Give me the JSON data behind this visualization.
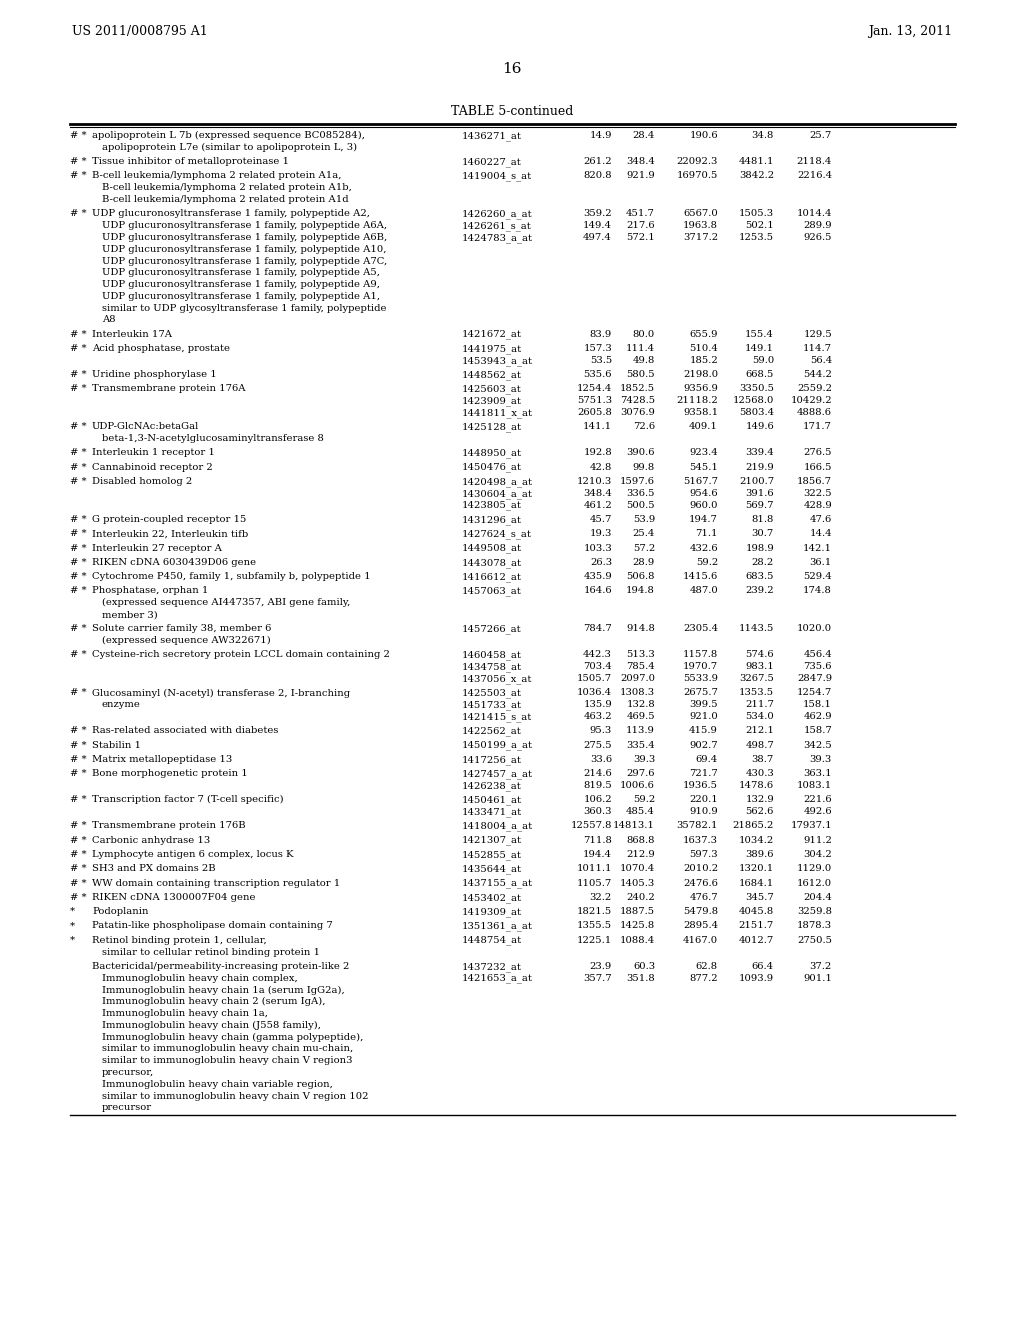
{
  "header_left": "US 2011/0008795 A1",
  "header_right": "Jan. 13, 2011",
  "page_number": "16",
  "table_title": "TABLE 5-continued",
  "background_color": "#ffffff",
  "text_color": "#000000",
  "font_size": 7.2,
  "rows": [
    {
      "markers": "# *",
      "gene": "apolipoprotein L 7b (expressed sequence BC085284),\napolipoprotein L7e (similar to apolipoprotein L, 3)",
      "probe": "1436271_at",
      "v1": "14.9",
      "v2": "28.4",
      "v3": "190.6",
      "v4": "34.8",
      "v5": "25.7"
    },
    {
      "markers": "# *",
      "gene": "Tissue inhibitor of metalloproteinase 1",
      "probe": "1460227_at",
      "v1": "261.2",
      "v2": "348.4",
      "v3": "22092.3",
      "v4": "4481.1",
      "v5": "2118.4"
    },
    {
      "markers": "# *",
      "gene": "B-cell leukemia/lymphoma 2 related protein A1a,\nB-cell leukemia/lymphoma 2 related protein A1b,\nB-cell leukemia/lymphoma 2 related protein A1d",
      "probe": "1419004_s_at",
      "v1": "820.8",
      "v2": "921.9",
      "v3": "16970.5",
      "v4": "3842.2",
      "v5": "2216.4"
    },
    {
      "markers": "# *",
      "gene": "UDP glucuronosyltransferase 1 family, polypeptide A2,\nUDP glucuronosyltransferase 1 family, polypeptide A6A,\nUDP glucuronosyltransferase 1 family, polypeptide A6B,\nUDP glucuronosyltransferase 1 family, polypeptide A10,\nUDP glucuronosyltransferase 1 family, polypeptide A7C,\nUDP glucuronosyltransferase 1 family, polypeptide A5,\nUDP glucuronosyltransferase 1 family, polypeptide A9,\nUDP glucuronosyltransferase 1 family, polypeptide A1,\nsimilar to UDP glycosyltransferase 1 family, polypeptide\nA8",
      "probe": "1426260_a_at\n1426261_s_at\n1424783_a_at",
      "v1": "359.2\n149.4\n497.4",
      "v2": "451.7\n217.6\n572.1",
      "v3": "6567.0\n1963.8\n3717.2",
      "v4": "1505.3\n502.1\n1253.5",
      "v5": "1014.4\n289.9\n926.5"
    },
    {
      "markers": "# *",
      "gene": "Interleukin 17A",
      "probe": "1421672_at",
      "v1": "83.9",
      "v2": "80.0",
      "v3": "655.9",
      "v4": "155.4",
      "v5": "129.5"
    },
    {
      "markers": "# *",
      "gene": "Acid phosphatase, prostate",
      "probe": "1441975_at\n1453943_a_at",
      "v1": "157.3\n53.5",
      "v2": "111.4\n49.8",
      "v3": "510.4\n185.2",
      "v4": "149.1\n59.0",
      "v5": "114.7\n56.4"
    },
    {
      "markers": "# *",
      "gene": "Uridine phosphorylase 1",
      "probe": "1448562_at",
      "v1": "535.6",
      "v2": "580.5",
      "v3": "2198.0",
      "v4": "668.5",
      "v5": "544.2"
    },
    {
      "markers": "# *",
      "gene": "Transmembrane protein 176A",
      "probe": "1425603_at\n1423909_at\n1441811_x_at",
      "v1": "1254.4\n5751.3\n2605.8",
      "v2": "1852.5\n7428.5\n3076.9",
      "v3": "9356.9\n21118.2\n9358.1",
      "v4": "3350.5\n12568.0\n5803.4",
      "v5": "2559.2\n10429.2\n4888.6"
    },
    {
      "markers": "# *",
      "gene": "UDP-GlcNAc:betaGal\nbeta-1,3-N-acetylglucosaminyltransferase 8",
      "probe": "1425128_at",
      "v1": "141.1",
      "v2": "72.6",
      "v3": "409.1",
      "v4": "149.6",
      "v5": "171.7"
    },
    {
      "markers": "# *",
      "gene": "Interleukin 1 receptor 1",
      "probe": "1448950_at",
      "v1": "192.8",
      "v2": "390.6",
      "v3": "923.4",
      "v4": "339.4",
      "v5": "276.5"
    },
    {
      "markers": "# *",
      "gene": "Cannabinoid receptor 2",
      "probe": "1450476_at",
      "v1": "42.8",
      "v2": "99.8",
      "v3": "545.1",
      "v4": "219.9",
      "v5": "166.5"
    },
    {
      "markers": "# *",
      "gene": "Disabled homolog 2",
      "probe": "1420498_a_at\n1430604_a_at\n1423805_at",
      "v1": "1210.3\n348.4\n461.2",
      "v2": "1597.6\n336.5\n500.5",
      "v3": "5167.7\n954.6\n960.0",
      "v4": "2100.7\n391.6\n569.7",
      "v5": "1856.7\n322.5\n428.9"
    },
    {
      "markers": "# *",
      "gene": "G protein-coupled receptor 15",
      "probe": "1431296_at",
      "v1": "45.7",
      "v2": "53.9",
      "v3": "194.7",
      "v4": "81.8",
      "v5": "47.6"
    },
    {
      "markers": "# *",
      "gene": "Interleukin 22, Interleukin tifb",
      "probe": "1427624_s_at",
      "v1": "19.3",
      "v2": "25.4",
      "v3": "71.1",
      "v4": "30.7",
      "v5": "14.4"
    },
    {
      "markers": "# *",
      "gene": "Interleukin 27 receptor A",
      "probe": "1449508_at",
      "v1": "103.3",
      "v2": "57.2",
      "v3": "432.6",
      "v4": "198.9",
      "v5": "142.1"
    },
    {
      "markers": "# *",
      "gene": "RIKEN cDNA 6030439D06 gene",
      "probe": "1443078_at",
      "v1": "26.3",
      "v2": "28.9",
      "v3": "59.2",
      "v4": "28.2",
      "v5": "36.1"
    },
    {
      "markers": "# *",
      "gene": "Cytochrome P450, family 1, subfamily b, polypeptide 1",
      "probe": "1416612_at",
      "v1": "435.9",
      "v2": "506.8",
      "v3": "1415.6",
      "v4": "683.5",
      "v5": "529.4"
    },
    {
      "markers": "# *",
      "gene": "Phosphatase, orphan 1\n(expressed sequence AI447357, ABI gene family,\nmember 3)",
      "probe": "1457063_at",
      "v1": "164.6",
      "v2": "194.8",
      "v3": "487.0",
      "v4": "239.2",
      "v5": "174.8"
    },
    {
      "markers": "# *",
      "gene": "Solute carrier family 38, member 6\n(expressed sequence AW322671)",
      "probe": "1457266_at",
      "v1": "784.7",
      "v2": "914.8",
      "v3": "2305.4",
      "v4": "1143.5",
      "v5": "1020.0"
    },
    {
      "markers": "# *",
      "gene": "Cysteine-rich secretory protein LCCL domain containing 2",
      "probe": "1460458_at\n1434758_at\n1437056_x_at",
      "v1": "442.3\n703.4\n1505.7",
      "v2": "513.3\n785.4\n2097.0",
      "v3": "1157.8\n1970.7\n5533.9",
      "v4": "574.6\n983.1\n3267.5",
      "v5": "456.4\n735.6\n2847.9"
    },
    {
      "markers": "# *",
      "gene": "Glucosaminyl (N-acetyl) transferase 2, I-branching\nenzyme",
      "probe": "1425503_at\n1451733_at\n1421415_s_at",
      "v1": "1036.4\n135.9\n463.2",
      "v2": "1308.3\n132.8\n469.5",
      "v3": "2675.7\n399.5\n921.0",
      "v4": "1353.5\n211.7\n534.0",
      "v5": "1254.7\n158.1\n462.9"
    },
    {
      "markers": "# *",
      "gene": "Ras-related associated with diabetes",
      "probe": "1422562_at",
      "v1": "95.3",
      "v2": "113.9",
      "v3": "415.9",
      "v4": "212.1",
      "v5": "158.7"
    },
    {
      "markers": "# *",
      "gene": "Stabilin 1",
      "probe": "1450199_a_at",
      "v1": "275.5",
      "v2": "335.4",
      "v3": "902.7",
      "v4": "498.7",
      "v5": "342.5"
    },
    {
      "markers": "# *",
      "gene": "Matrix metallopeptidase 13",
      "probe": "1417256_at",
      "v1": "33.6",
      "v2": "39.3",
      "v3": "69.4",
      "v4": "38.7",
      "v5": "39.3"
    },
    {
      "markers": "# *",
      "gene": "Bone morphogenetic protein 1",
      "probe": "1427457_a_at\n1426238_at",
      "v1": "214.6\n819.5",
      "v2": "297.6\n1006.6",
      "v3": "721.7\n1936.5",
      "v4": "430.3\n1478.6",
      "v5": "363.1\n1083.1"
    },
    {
      "markers": "# *",
      "gene": "Transcription factor 7 (T-cell specific)",
      "probe": "1450461_at\n1433471_at",
      "v1": "106.2\n360.3",
      "v2": "59.2\n485.4",
      "v3": "220.1\n910.9",
      "v4": "132.9\n562.6",
      "v5": "221.6\n492.6"
    },
    {
      "markers": "# *",
      "gene": "Transmembrane protein 176B",
      "probe": "1418004_a_at",
      "v1": "12557.8",
      "v2": "14813.1",
      "v3": "35782.1",
      "v4": "21865.2",
      "v5": "17937.1"
    },
    {
      "markers": "# *",
      "gene": "Carbonic anhydrase 13",
      "probe": "1421307_at",
      "v1": "711.8",
      "v2": "868.8",
      "v3": "1637.3",
      "v4": "1034.2",
      "v5": "911.2"
    },
    {
      "markers": "# *",
      "gene": "Lymphocyte antigen 6 complex, locus K",
      "probe": "1452855_at",
      "v1": "194.4",
      "v2": "212.9",
      "v3": "597.3",
      "v4": "389.6",
      "v5": "304.2"
    },
    {
      "markers": "# *",
      "gene": "SH3 and PX domains 2B",
      "probe": "1435644_at",
      "v1": "1011.1",
      "v2": "1070.4",
      "v3": "2010.2",
      "v4": "1320.1",
      "v5": "1129.0"
    },
    {
      "markers": "# *",
      "gene": "WW domain containing transcription regulator 1",
      "probe": "1437155_a_at",
      "v1": "1105.7",
      "v2": "1405.3",
      "v3": "2476.6",
      "v4": "1684.1",
      "v5": "1612.0"
    },
    {
      "markers": "# *",
      "gene": "RIKEN cDNA 1300007F04 gene",
      "probe": "1453402_at",
      "v1": "32.2",
      "v2": "240.2",
      "v3": "476.7",
      "v4": "345.7",
      "v5": "204.4"
    },
    {
      "markers": "*",
      "gene": "Podoplanin",
      "probe": "1419309_at",
      "v1": "1821.5",
      "v2": "1887.5",
      "v3": "5479.8",
      "v4": "4045.8",
      "v5": "3259.8"
    },
    {
      "markers": "*",
      "gene": "Patatin-like phospholipase domain containing 7",
      "probe": "1351361_a_at",
      "v1": "1355.5",
      "v2": "1425.8",
      "v3": "2895.4",
      "v4": "2151.7",
      "v5": "1878.3"
    },
    {
      "markers": "*",
      "gene": "Retinol binding protein 1, cellular,\nsimilar to cellular retinol binding protein 1",
      "probe": "1448754_at",
      "v1": "1225.1",
      "v2": "1088.4",
      "v3": "4167.0",
      "v4": "4012.7",
      "v5": "2750.5"
    },
    {
      "markers": "",
      "gene": "Bactericidal/permeability-increasing protein-like 2\nImmunoglobulin heavy chain complex,\nImmunoglobulin heavy chain 1a (serum IgG2a),\nImmunoglobulin heavy chain 2 (serum IgA),\nImmunoglobulin heavy chain 1a,\nImmunoglobulin heavy chain (J558 family),\nImmunoglobulin heavy chain (gamma polypeptide),\nsimilar to immunoglobulin heavy chain mu-chain,\nsimilar to immunoglobulin heavy chain V region3\nprecursor,\nImmunoglobulin heavy chain variable region,\nsimilar to immunoglobulin heavy chain V region 102\nprecursor",
      "probe": "1437232_at\n1421653_a_at",
      "v1": "23.9\n357.7",
      "v2": "60.3\n351.8",
      "v3": "62.8\n877.2",
      "v4": "66.4\n1093.9",
      "v5": "37.2\n901.1"
    }
  ]
}
